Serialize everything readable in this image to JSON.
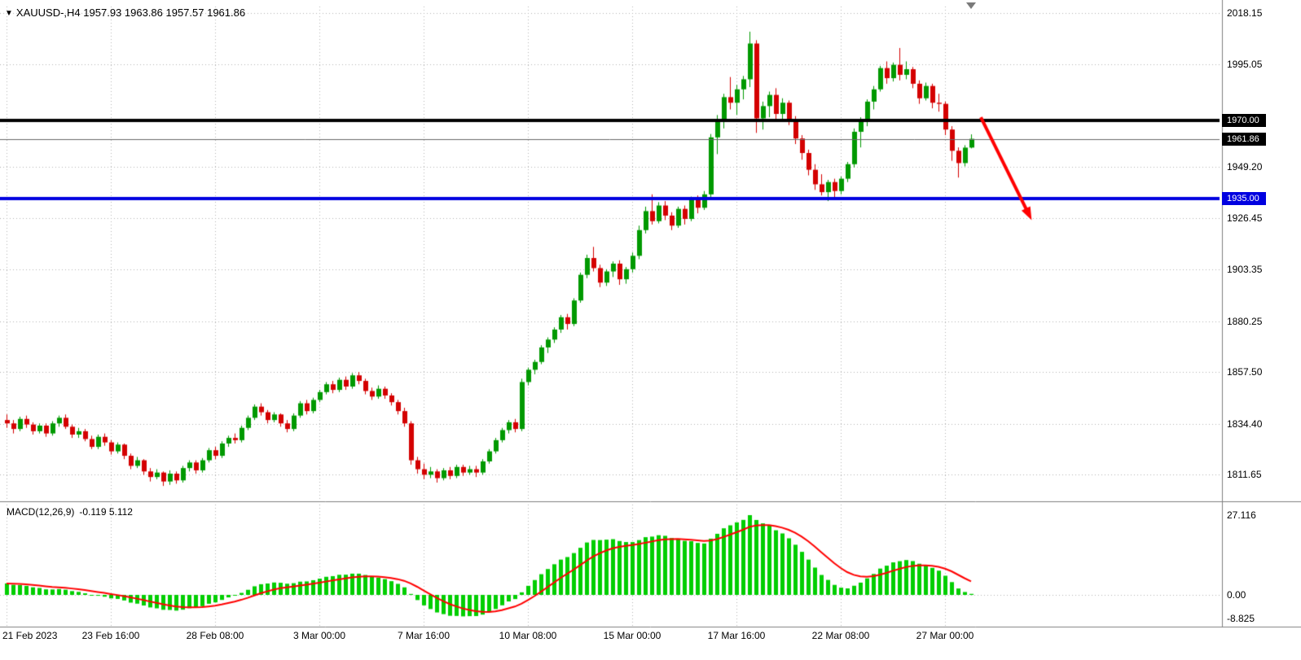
{
  "header": {
    "symbol_period": "XAUUSD-,H4",
    "ohlc_text": "1957.93 1963.86 1957.57 1961.86"
  },
  "chart_data": {
    "type": "candlestick",
    "symbol": "XAUUSD-",
    "timeframe": "H4",
    "price_axis": {
      "ticks": [
        {
          "value": 2018.15,
          "label": "2018.15"
        },
        {
          "value": 1995.05,
          "label": "1995.05"
        },
        {
          "value": 1949.2,
          "label": "1949.20"
        },
        {
          "value": 1926.45,
          "label": "1926.45"
        },
        {
          "value": 1903.35,
          "label": "1903.35"
        },
        {
          "value": 1880.25,
          "label": "1880.25"
        },
        {
          "value": 1857.5,
          "label": "1857.50"
        },
        {
          "value": 1834.4,
          "label": "1834.40"
        },
        {
          "value": 1811.65,
          "label": "1811.65"
        }
      ],
      "max": 2018.15,
      "min": 1811.65
    },
    "time_axis": {
      "tick_interval_bars": 16,
      "labels": [
        "21 Feb 2023",
        "23 Feb 16:00",
        "28 Feb 08:00",
        "3 Mar 00:00",
        "7 Mar 16:00",
        "10 Mar 08:00",
        "15 Mar 00:00",
        "17 Mar 16:00",
        "22 Mar 08:00",
        "27 Mar 00:00"
      ]
    },
    "horizontal_lines": [
      {
        "price": 1970.0,
        "label": "1970.00",
        "color": "#000000",
        "width": 4
      },
      {
        "price": 1935.0,
        "label": "1935.00",
        "color": "#0000E0",
        "width": 4
      }
    ],
    "current_price": {
      "value": 1961.86,
      "label": "1961.86",
      "line_color": "#666666",
      "badge_color": "#000000"
    },
    "trend_arrow": {
      "from_bar": 149.5,
      "from_price": 1971.5,
      "to_bar": 157.3,
      "to_price": 1925.5,
      "color": "#FF0000"
    },
    "colors": {
      "background": "#FFFFFF",
      "grid": "#B4B4B4",
      "bull": "#009900",
      "bear": "#D40000",
      "separator": "#808080",
      "macd_histogram": "#00CE00",
      "macd_signal": "#FF0000"
    },
    "macd": {
      "label": "MACD(12,26,9)",
      "values_text": "-0.119 5.112",
      "fast": 12,
      "slow": 26,
      "signal": 9,
      "axis_ticks": [
        {
          "value": 27.116,
          "label": "27.116"
        },
        {
          "value": 0,
          "label": "0.00"
        },
        {
          "value": -8.825,
          "label": "-8.825"
        }
      ]
    },
    "candles": [
      [
        1836.0,
        1838.5,
        1832.5,
        1834.5
      ],
      [
        1834.5,
        1836.0,
        1830.0,
        1832.0
      ],
      [
        1832.0,
        1837.5,
        1831.0,
        1836.5
      ],
      [
        1836.5,
        1838.0,
        1832.5,
        1834.0
      ],
      [
        1834.0,
        1835.0,
        1829.5,
        1831.0
      ],
      [
        1831.0,
        1834.5,
        1830.0,
        1833.5
      ],
      [
        1833.5,
        1834.5,
        1828.5,
        1830.0
      ],
      [
        1830.0,
        1835.5,
        1829.0,
        1834.5
      ],
      [
        1834.5,
        1838.0,
        1833.0,
        1837.0
      ],
      [
        1837.0,
        1838.5,
        1832.0,
        1833.0
      ],
      [
        1833.0,
        1834.0,
        1828.0,
        1829.5
      ],
      [
        1829.5,
        1832.5,
        1828.0,
        1831.0
      ],
      [
        1831.0,
        1832.0,
        1826.5,
        1827.5
      ],
      [
        1827.5,
        1829.0,
        1823.0,
        1824.0
      ],
      [
        1824.0,
        1829.5,
        1823.0,
        1828.5
      ],
      [
        1828.5,
        1830.0,
        1824.5,
        1826.0
      ],
      [
        1826.0,
        1827.0,
        1820.5,
        1822.0
      ],
      [
        1822.0,
        1826.0,
        1821.0,
        1825.0
      ],
      [
        1825.0,
        1825.5,
        1818.5,
        1820.0
      ],
      [
        1820.0,
        1821.0,
        1814.0,
        1815.5
      ],
      [
        1815.5,
        1819.5,
        1814.5,
        1818.0
      ],
      [
        1818.0,
        1818.5,
        1811.5,
        1813.0
      ],
      [
        1813.0,
        1814.5,
        1808.5,
        1810.5
      ],
      [
        1810.5,
        1814.0,
        1809.5,
        1812.5
      ],
      [
        1812.5,
        1813.0,
        1806.5,
        1808.5
      ],
      [
        1808.5,
        1813.5,
        1807.0,
        1812.0
      ],
      [
        1812.0,
        1813.0,
        1807.5,
        1809.0
      ],
      [
        1809.0,
        1815.5,
        1808.0,
        1814.5
      ],
      [
        1814.5,
        1818.0,
        1813.0,
        1817.0
      ],
      [
        1817.0,
        1818.0,
        1812.0,
        1813.5
      ],
      [
        1813.5,
        1819.0,
        1812.5,
        1818.0
      ],
      [
        1818.0,
        1823.5,
        1817.0,
        1822.5
      ],
      [
        1822.5,
        1824.0,
        1818.5,
        1820.0
      ],
      [
        1820.0,
        1826.5,
        1819.0,
        1825.5
      ],
      [
        1825.5,
        1829.0,
        1824.0,
        1828.0
      ],
      [
        1828.0,
        1830.0,
        1825.5,
        1827.0
      ],
      [
        1827.0,
        1833.5,
        1826.0,
        1832.5
      ],
      [
        1832.5,
        1838.0,
        1831.5,
        1837.0
      ],
      [
        1837.0,
        1843.0,
        1836.0,
        1842.0
      ],
      [
        1842.0,
        1843.5,
        1838.0,
        1839.5
      ],
      [
        1839.5,
        1840.5,
        1834.5,
        1836.0
      ],
      [
        1836.0,
        1839.5,
        1835.0,
        1838.5
      ],
      [
        1838.5,
        1839.0,
        1833.0,
        1834.5
      ],
      [
        1834.5,
        1836.0,
        1830.5,
        1832.0
      ],
      [
        1832.0,
        1839.0,
        1831.0,
        1838.0
      ],
      [
        1838.0,
        1844.5,
        1837.0,
        1843.5
      ],
      [
        1843.5,
        1845.0,
        1838.5,
        1840.0
      ],
      [
        1840.0,
        1846.0,
        1839.0,
        1845.0
      ],
      [
        1845.0,
        1849.5,
        1844.0,
        1848.5
      ],
      [
        1848.5,
        1853.0,
        1847.5,
        1852.0
      ],
      [
        1852.0,
        1853.5,
        1848.0,
        1849.5
      ],
      [
        1849.5,
        1855.0,
        1848.5,
        1854.0
      ],
      [
        1854.0,
        1855.5,
        1849.5,
        1851.0
      ],
      [
        1851.0,
        1857.0,
        1850.0,
        1856.0
      ],
      [
        1856.0,
        1857.5,
        1852.0,
        1853.5
      ],
      [
        1853.5,
        1854.5,
        1847.5,
        1849.0
      ],
      [
        1849.0,
        1850.5,
        1845.0,
        1846.5
      ],
      [
        1846.5,
        1851.5,
        1845.5,
        1850.0
      ],
      [
        1850.0,
        1851.0,
        1845.5,
        1847.0
      ],
      [
        1847.0,
        1848.0,
        1842.5,
        1844.0
      ],
      [
        1844.0,
        1845.0,
        1838.5,
        1840.0
      ],
      [
        1840.0,
        1841.5,
        1833.0,
        1834.5
      ],
      [
        1834.5,
        1835.5,
        1816.0,
        1818.0
      ],
      [
        1818.0,
        1819.5,
        1812.0,
        1814.0
      ],
      [
        1814.0,
        1816.5,
        1809.5,
        1811.5
      ],
      [
        1811.5,
        1815.0,
        1810.0,
        1813.0
      ],
      [
        1813.0,
        1814.0,
        1808.0,
        1810.0
      ],
      [
        1810.0,
        1814.5,
        1809.0,
        1813.5
      ],
      [
        1813.5,
        1815.0,
        1809.5,
        1811.0
      ],
      [
        1811.0,
        1816.0,
        1810.0,
        1815.0
      ],
      [
        1815.0,
        1816.0,
        1811.0,
        1812.5
      ],
      [
        1812.5,
        1815.5,
        1811.5,
        1814.0
      ],
      [
        1814.0,
        1815.5,
        1810.5,
        1812.5
      ],
      [
        1812.5,
        1818.5,
        1811.5,
        1817.5
      ],
      [
        1817.5,
        1823.0,
        1816.5,
        1822.0
      ],
      [
        1822.0,
        1828.0,
        1821.0,
        1827.0
      ],
      [
        1827.0,
        1832.5,
        1826.0,
        1831.5
      ],
      [
        1831.5,
        1836.0,
        1830.0,
        1835.0
      ],
      [
        1835.0,
        1836.5,
        1830.5,
        1832.0
      ],
      [
        1832.0,
        1854.5,
        1831.0,
        1853.0
      ],
      [
        1853.0,
        1859.5,
        1851.5,
        1858.5
      ],
      [
        1858.5,
        1863.0,
        1856.5,
        1862.0
      ],
      [
        1862.0,
        1869.5,
        1861.0,
        1868.5
      ],
      [
        1868.5,
        1873.0,
        1866.0,
        1872.0
      ],
      [
        1872.0,
        1877.5,
        1870.5,
        1876.5
      ],
      [
        1876.5,
        1883.0,
        1875.0,
        1882.0
      ],
      [
        1882.0,
        1883.5,
        1876.5,
        1879.0
      ],
      [
        1879.0,
        1890.5,
        1878.0,
        1889.5
      ],
      [
        1889.5,
        1902.0,
        1888.5,
        1901.0
      ],
      [
        1901.0,
        1910.0,
        1899.5,
        1908.5
      ],
      [
        1908.5,
        1913.5,
        1902.5,
        1904.0
      ],
      [
        1904.0,
        1905.5,
        1895.5,
        1897.5
      ],
      [
        1897.5,
        1903.5,
        1896.0,
        1902.5
      ],
      [
        1902.5,
        1907.0,
        1900.0,
        1906.0
      ],
      [
        1906.0,
        1907.5,
        1896.5,
        1899.0
      ],
      [
        1899.0,
        1904.5,
        1897.0,
        1903.5
      ],
      [
        1903.5,
        1911.0,
        1902.0,
        1909.5
      ],
      [
        1909.5,
        1923.0,
        1908.0,
        1921.0
      ],
      [
        1921.0,
        1931.5,
        1919.5,
        1929.5
      ],
      [
        1929.5,
        1937.0,
        1923.5,
        1925.0
      ],
      [
        1925.0,
        1933.5,
        1924.0,
        1932.0
      ],
      [
        1932.0,
        1934.0,
        1925.5,
        1927.5
      ],
      [
        1927.5,
        1929.0,
        1921.0,
        1923.0
      ],
      [
        1923.0,
        1931.5,
        1922.0,
        1930.5
      ],
      [
        1930.5,
        1932.0,
        1923.5,
        1926.0
      ],
      [
        1926.0,
        1936.0,
        1925.0,
        1934.5
      ],
      [
        1934.5,
        1936.5,
        1928.5,
        1931.0
      ],
      [
        1931.0,
        1938.5,
        1930.0,
        1937.0
      ],
      [
        1937.0,
        1964.0,
        1935.5,
        1962.5
      ],
      [
        1962.5,
        1972.5,
        1955.0,
        1970.0
      ],
      [
        1970.0,
        1982.0,
        1966.5,
        1980.5
      ],
      [
        1980.5,
        1989.5,
        1975.0,
        1978.0
      ],
      [
        1978.0,
        1986.0,
        1972.5,
        1984.0
      ],
      [
        1984.0,
        1990.0,
        1979.5,
        1988.5
      ],
      [
        1988.5,
        2009.8,
        1985.0,
        2004.5
      ],
      [
        2004.5,
        2006.0,
        1964.5,
        1971.0
      ],
      [
        1971.0,
        1978.5,
        1966.0,
        1976.5
      ],
      [
        1976.5,
        1983.0,
        1971.5,
        1981.5
      ],
      [
        1981.5,
        1984.5,
        1970.0,
        1973.0
      ],
      [
        1973.0,
        1980.0,
        1969.5,
        1978.0
      ],
      [
        1978.0,
        1979.0,
        1968.0,
        1970.5
      ],
      [
        1970.5,
        1972.0,
        1959.5,
        1962.0
      ],
      [
        1962.0,
        1963.5,
        1952.5,
        1955.5
      ],
      [
        1955.5,
        1957.0,
        1945.5,
        1948.0
      ],
      [
        1948.0,
        1950.5,
        1939.0,
        1941.5
      ],
      [
        1941.5,
        1946.0,
        1936.5,
        1938.0
      ],
      [
        1938.0,
        1943.5,
        1934.0,
        1942.5
      ],
      [
        1942.5,
        1944.0,
        1935.5,
        1938.5
      ],
      [
        1938.5,
        1945.0,
        1937.0,
        1944.0
      ],
      [
        1944.0,
        1951.5,
        1942.5,
        1950.5
      ],
      [
        1950.5,
        1966.5,
        1949.0,
        1965.0
      ],
      [
        1965.0,
        1971.5,
        1958.0,
        1970.0
      ],
      [
        1970.0,
        1979.5,
        1967.5,
        1978.5
      ],
      [
        1978.5,
        1985.5,
        1975.0,
        1984.0
      ],
      [
        1984.0,
        1994.5,
        1983.0,
        1993.5
      ],
      [
        1993.5,
        1996.5,
        1986.5,
        1989.0
      ],
      [
        1989.0,
        1996.0,
        1987.5,
        1995.0
      ],
      [
        1995.0,
        2002.5,
        1988.0,
        1990.5
      ],
      [
        1990.5,
        1996.5,
        1988.5,
        1993.0
      ],
      [
        1993.0,
        1994.0,
        1984.5,
        1986.5
      ],
      [
        1986.5,
        1988.0,
        1977.5,
        1980.0
      ],
      [
        1980.0,
        1987.0,
        1979.0,
        1985.5
      ],
      [
        1985.5,
        1986.5,
        1975.5,
        1978.0
      ],
      [
        1978.0,
        1982.0,
        1974.0,
        1977.5
      ],
      [
        1977.5,
        1978.5,
        1963.5,
        1966.0
      ],
      [
        1966.0,
        1967.5,
        1952.0,
        1956.5
      ],
      [
        1956.5,
        1958.0,
        1944.5,
        1951.0
      ],
      [
        1951.0,
        1959.0,
        1949.5,
        1957.9
      ],
      [
        1957.93,
        1963.86,
        1957.57,
        1961.86
      ]
    ]
  }
}
